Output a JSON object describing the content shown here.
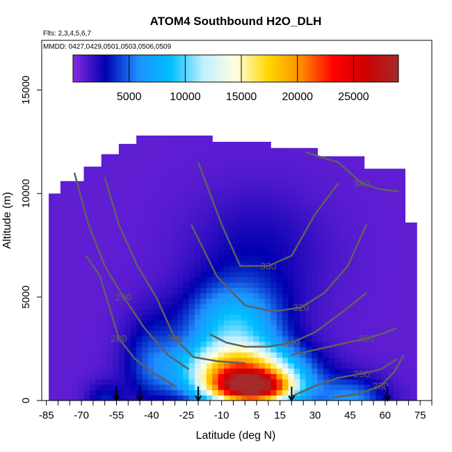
{
  "chart_data": {
    "type": "heatmap",
    "title": "ATOM4 Southbound H2O_DLH",
    "flights_note": "Flts: 2,3,4,5,6,7",
    "dates_note": "MMDD: 0427,0429,0501,0503,0506,0509",
    "xlabel": "Latitude (deg N)",
    "ylabel": "Altitude (m)",
    "xlim": [
      -87,
      80
    ],
    "ylim": [
      0,
      17400
    ],
    "x_ticks": [
      -85,
      -70,
      -55,
      -40,
      -25,
      -10,
      5,
      15,
      30,
      45,
      60,
      75
    ],
    "y_ticks": [
      0,
      5000,
      10000,
      15000
    ],
    "colorbar": {
      "range": [
        0,
        29000
      ],
      "tick_values": [
        5000,
        10000,
        15000,
        20000,
        25000
      ],
      "tick_labels": [
        "5000",
        "10000",
        "15000",
        "20000",
        "25000"
      ],
      "colors": [
        "#8a2be2",
        "#0000b0",
        "#1e90ff",
        "#00bfff",
        "#bfefff",
        "#ffffe0",
        "#ffd700",
        "#ff8c00",
        "#ff0000",
        "#cc0000",
        "#a52a2a"
      ]
    },
    "contour_lines": [
      {
        "label": "280",
        "points": [
          [
            -68,
            7000
          ],
          [
            -62,
            6000
          ],
          [
            -58,
            4500
          ],
          [
            -54,
            3000
          ],
          [
            -47,
            2000
          ],
          [
            -40,
            1400
          ],
          [
            -30,
            700
          ]
        ]
      },
      {
        "label": "280",
        "points": [
          [
            38,
            150
          ],
          [
            48,
            300
          ],
          [
            58,
            700
          ],
          [
            64,
            1400
          ],
          [
            68,
            2200
          ]
        ]
      },
      {
        "label": "290",
        "points": [
          [
            -73,
            11000
          ],
          [
            -67,
            8500
          ],
          [
            -60,
            6500
          ],
          [
            -52,
            5000
          ],
          [
            -43,
            3500
          ],
          [
            -33,
            2200
          ],
          [
            -24,
            1500
          ]
        ]
      },
      {
        "label": "290",
        "points": [
          [
            20,
            200
          ],
          [
            30,
            700
          ],
          [
            40,
            1100
          ],
          [
            50,
            1300
          ],
          [
            58,
            1500
          ],
          [
            65,
            2000
          ]
        ]
      },
      {
        "label": "300",
        "points": [
          [
            -60,
            10800
          ],
          [
            -54,
            8500
          ],
          [
            -46,
            6500
          ],
          [
            -38,
            5000
          ],
          [
            -30,
            3000
          ],
          [
            -22,
            2100
          ],
          [
            -12,
            1900
          ],
          [
            0,
            1800
          ]
        ]
      },
      {
        "label": "300",
        "points": [
          [
            20,
            2200
          ],
          [
            32,
            2500
          ],
          [
            44,
            2800
          ],
          [
            52,
            3000
          ],
          [
            58,
            3200
          ],
          [
            65,
            3500
          ]
        ]
      },
      {
        "label": "310",
        "points": [
          [
            -15,
            3200
          ],
          [
            -8,
            2800
          ],
          [
            0,
            2600
          ],
          [
            10,
            2600
          ],
          [
            20,
            2800
          ],
          [
            30,
            3300
          ],
          [
            42,
            4300
          ],
          [
            52,
            5200
          ]
        ]
      },
      {
        "label": "320",
        "points": [
          [
            -23,
            8500
          ],
          [
            -12,
            6000
          ],
          [
            0,
            4600
          ],
          [
            12,
            4300
          ],
          [
            24,
            4500
          ],
          [
            34,
            5200
          ],
          [
            44,
            6500
          ],
          [
            52,
            8500
          ]
        ]
      },
      {
        "label": "330",
        "points": [
          [
            -20,
            11500
          ],
          [
            -10,
            8500
          ],
          [
            -2,
            6500
          ],
          [
            10,
            6500
          ],
          [
            20,
            7000
          ],
          [
            30,
            9000
          ],
          [
            40,
            10500
          ]
        ]
      },
      {
        "label": "340",
        "points": [
          [
            26,
            12000
          ],
          [
            40,
            11500
          ],
          [
            50,
            10500
          ],
          [
            58,
            10200
          ],
          [
            66,
            10100
          ]
        ]
      }
    ],
    "flight_markers_lat": [
      -55,
      -45,
      -20,
      20,
      61
    ],
    "grid": false
  }
}
